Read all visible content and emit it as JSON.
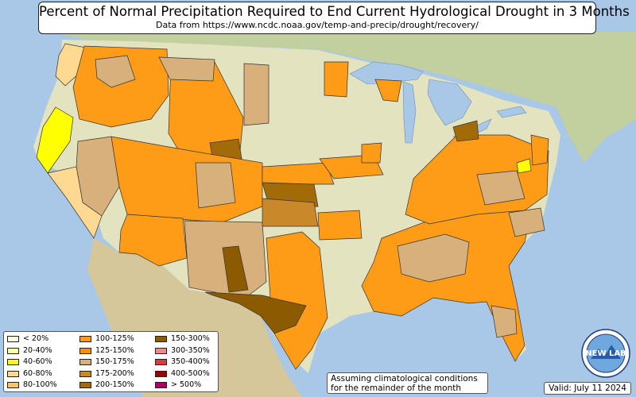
{
  "title": "Percent of Normal Precipitation Required to End Current Hydrological Drought in 3 Months",
  "subtitle": "Data from https://www.ncdc.noaa.gov/temp-and-precip/drought/recovery/",
  "legend": [
    {
      "label": "< 20%",
      "color": "#ffffe4"
    },
    {
      "label": "20-40%",
      "color": "#ffffa8"
    },
    {
      "label": "40-60%",
      "color": "#ffff00"
    },
    {
      "label": "60-80%",
      "color": "#ffd891"
    },
    {
      "label": "80-100%",
      "color": "#ffc469"
    },
    {
      "label": "100-125%",
      "color": "#ff9c17"
    },
    {
      "label": "125-150%",
      "color": "#f99100"
    },
    {
      "label": "150-175%",
      "color": "#d8b07c"
    },
    {
      "label": "175-200%",
      "color": "#c9882a"
    },
    {
      "label": "200-150%",
      "color": "#a36a08"
    },
    {
      "label": "150-300%",
      "color": "#8c5a00"
    },
    {
      "label": "300-350%",
      "color": "#f08a8a"
    },
    {
      "label": "350-400%",
      "color": "#d93c3c"
    },
    {
      "label": "400-500%",
      "color": "#a30000"
    },
    {
      "label": "> 500%",
      "color": "#a8006a"
    }
  ],
  "note_line1": "Assuming climatological conditions",
  "note_line2": "for the remainder of the month",
  "valid": "Valid: July 11 2024",
  "logo_text": "NEW LAB",
  "colors": {
    "ocean": "#a9c7e6",
    "land": "#e3e3c0",
    "canada": "#c2cf9f",
    "mexico": "#d6c79a",
    "lakes": "#a9c7e6"
  }
}
